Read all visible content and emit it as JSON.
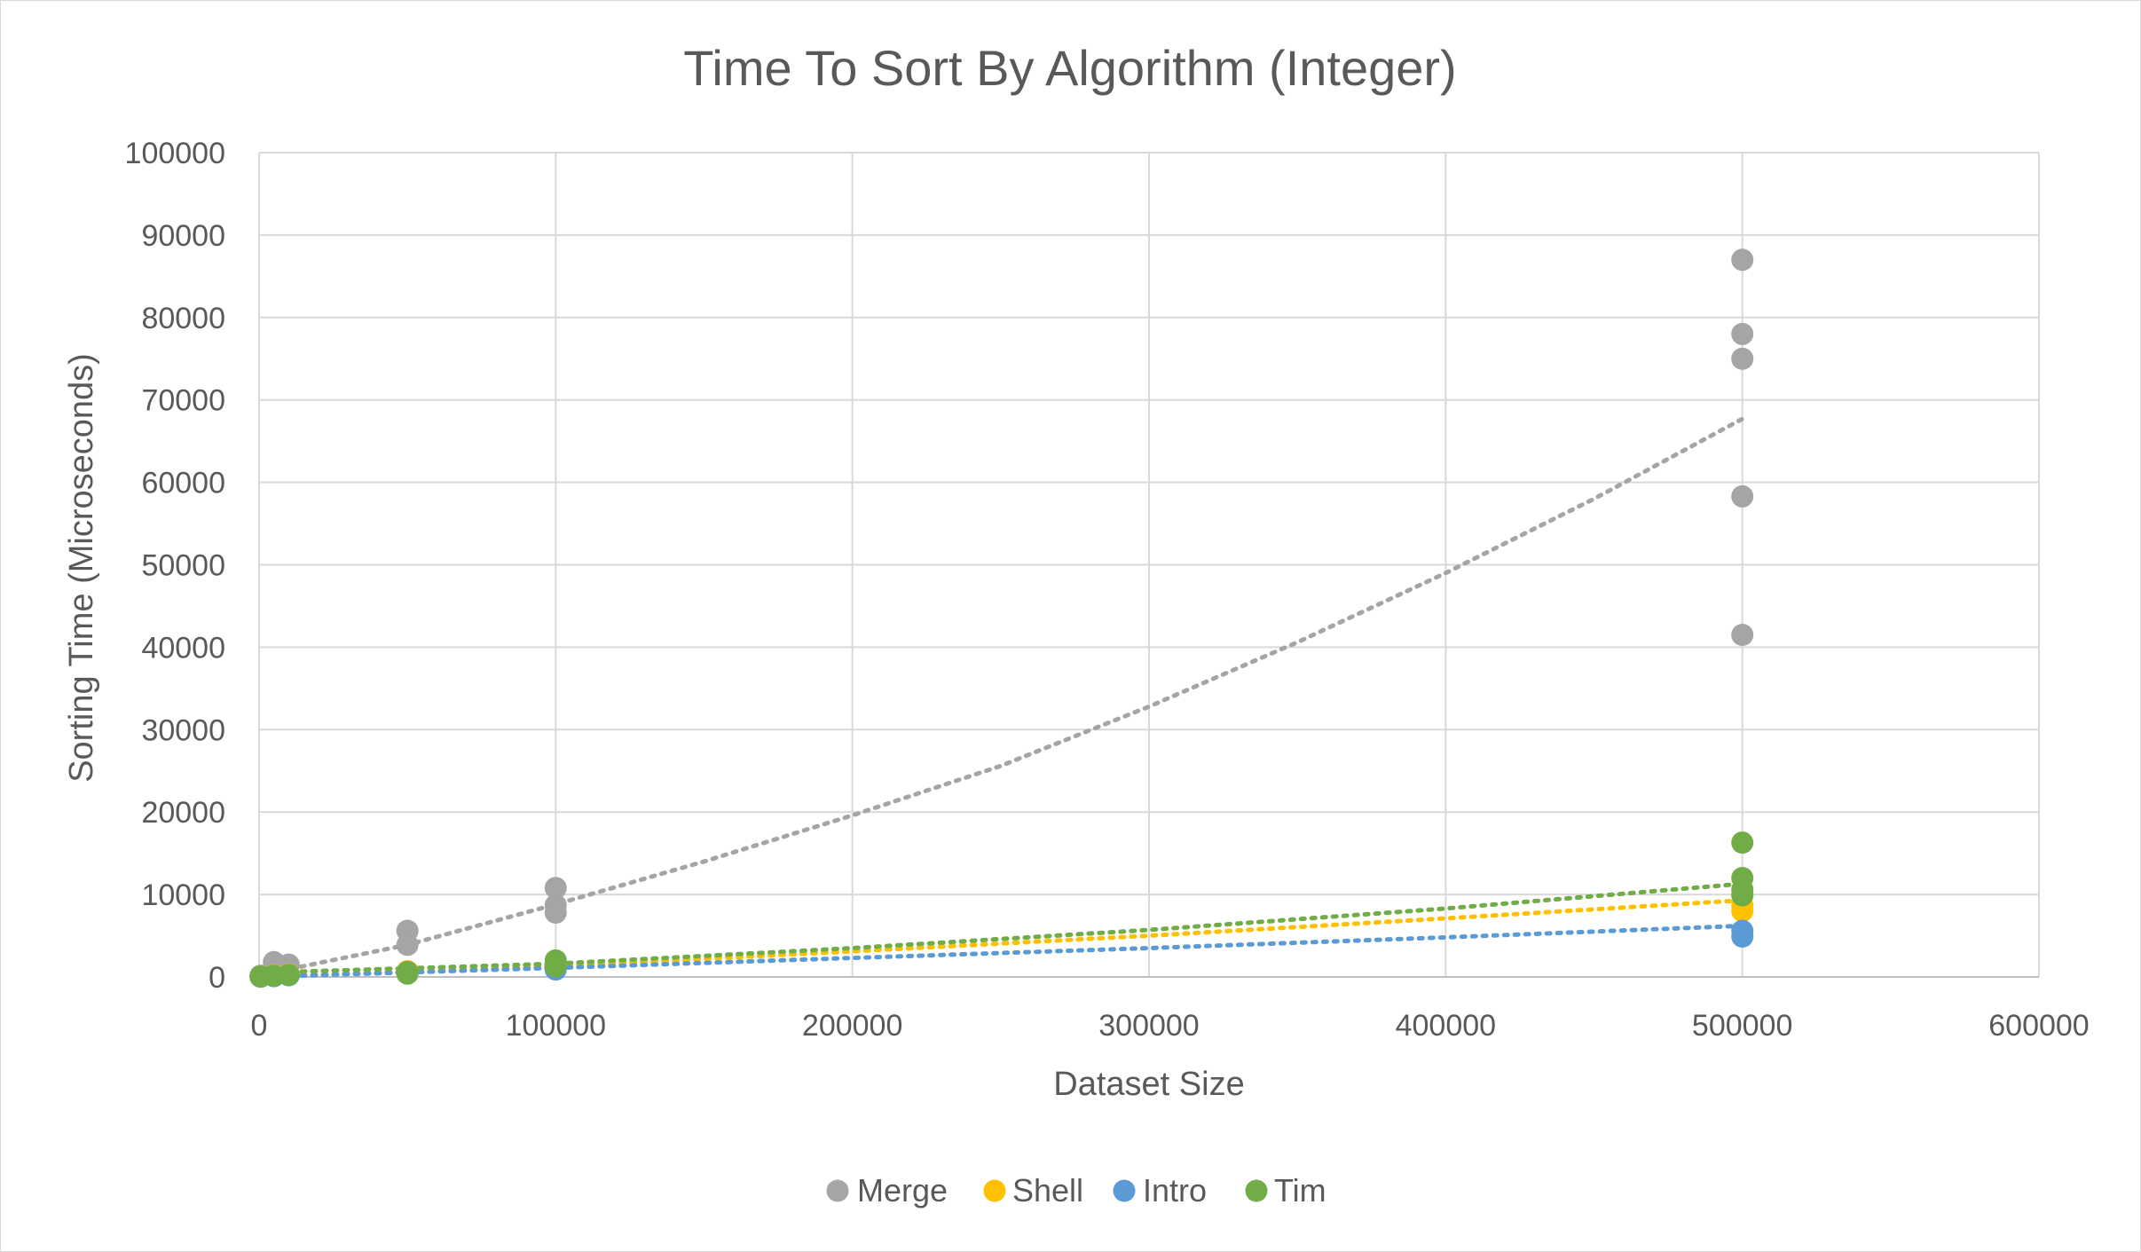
{
  "chart_data": {
    "type": "scatter",
    "title": "Time To Sort By Algorithm (Integer)",
    "xlabel": "Dataset Size",
    "ylabel": "Sorting Time (Microseconds)",
    "xlim": [
      0,
      600000
    ],
    "ylim": [
      0,
      100000
    ],
    "x_ticks": [
      0,
      100000,
      200000,
      300000,
      400000,
      500000,
      600000
    ],
    "y_ticks": [
      0,
      10000,
      20000,
      30000,
      40000,
      50000,
      60000,
      70000,
      80000,
      90000,
      100000
    ],
    "x_tick_labels": [
      "0",
      "100000",
      "200000",
      "300000",
      "400000",
      "500000",
      "600000"
    ],
    "y_tick_labels": [
      "0",
      "10000",
      "20000",
      "30000",
      "40000",
      "50000",
      "60000",
      "70000",
      "80000",
      "90000",
      "100000"
    ],
    "grid": true,
    "legend_position": "bottom",
    "series": [
      {
        "name": "Merge",
        "color": "#a5a5a5",
        "points": [
          [
            500,
            150
          ],
          [
            5000,
            1800
          ],
          [
            10000,
            1500
          ],
          [
            50000,
            5600
          ],
          [
            50000,
            3900
          ],
          [
            100000,
            10800
          ],
          [
            100000,
            8700
          ],
          [
            100000,
            7800
          ],
          [
            500000,
            87000
          ],
          [
            500000,
            78000
          ],
          [
            500000,
            75000
          ],
          [
            500000,
            58300
          ],
          [
            500000,
            41500
          ]
        ],
        "trendline": [
          [
            0,
            200
          ],
          [
            50000,
            3900
          ],
          [
            100000,
            8800
          ],
          [
            150000,
            14000
          ],
          [
            200000,
            19600
          ],
          [
            250000,
            25600
          ],
          [
            300000,
            32800
          ],
          [
            350000,
            40600
          ],
          [
            400000,
            49000
          ],
          [
            450000,
            58000
          ],
          [
            500000,
            67700
          ]
        ]
      },
      {
        "name": "Shell",
        "color": "#ffc000",
        "points": [
          [
            500,
            50
          ],
          [
            5000,
            200
          ],
          [
            10000,
            300
          ],
          [
            50000,
            700
          ],
          [
            100000,
            1500
          ],
          [
            500000,
            10000
          ],
          [
            500000,
            8700
          ],
          [
            500000,
            8000
          ]
        ],
        "trendline": [
          [
            0,
            0
          ],
          [
            100000,
            1300
          ],
          [
            200000,
            3100
          ],
          [
            300000,
            5000
          ],
          [
            400000,
            7100
          ],
          [
            500000,
            9300
          ]
        ]
      },
      {
        "name": "Intro",
        "color": "#5b9bd5",
        "points": [
          [
            500,
            30
          ],
          [
            5000,
            100
          ],
          [
            10000,
            200
          ],
          [
            50000,
            500
          ],
          [
            100000,
            900
          ],
          [
            500000,
            5600
          ],
          [
            500000,
            4900
          ]
        ],
        "trendline": [
          [
            0,
            0
          ],
          [
            100000,
            1100
          ],
          [
            200000,
            2300
          ],
          [
            300000,
            3500
          ],
          [
            400000,
            4800
          ],
          [
            500000,
            6200
          ]
        ]
      },
      {
        "name": "Tim",
        "color": "#70ad47",
        "points": [
          [
            500,
            40
          ],
          [
            5000,
            150
          ],
          [
            10000,
            250
          ],
          [
            50000,
            600
          ],
          [
            50000,
            400
          ],
          [
            100000,
            2000
          ],
          [
            100000,
            1300
          ],
          [
            500000,
            16300
          ],
          [
            500000,
            12000
          ],
          [
            500000,
            10600
          ],
          [
            500000,
            9900
          ]
        ],
        "trendline": [
          [
            0,
            500
          ],
          [
            100000,
            1600
          ],
          [
            200000,
            3500
          ],
          [
            300000,
            5700
          ],
          [
            400000,
            8300
          ],
          [
            500000,
            11300
          ]
        ]
      }
    ]
  }
}
